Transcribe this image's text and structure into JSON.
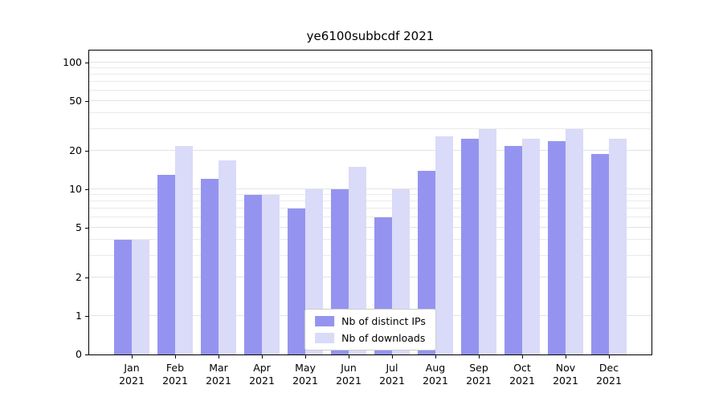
{
  "chart_data": {
    "type": "bar",
    "title": "ye6100subbcdf 2021",
    "categories": [
      "Jan",
      "Feb",
      "Mar",
      "Apr",
      "May",
      "Jun",
      "Jul",
      "Aug",
      "Sep",
      "Oct",
      "Nov",
      "Dec"
    ],
    "year_label": "2021",
    "series": [
      {
        "name": "Nb of distinct IPs",
        "color": "#9494f0",
        "values": [
          4,
          13,
          12,
          9,
          7,
          10,
          6,
          14,
          25,
          22,
          24,
          19
        ]
      },
      {
        "name": "Nb of downloads",
        "color": "#dadaf9",
        "values": [
          4,
          22,
          17,
          9,
          10,
          15,
          10,
          26,
          30,
          25,
          30,
          25
        ]
      }
    ],
    "y_axis": {
      "scale": "symlog",
      "ticks": [
        0,
        1,
        2,
        5,
        10,
        20,
        50,
        100
      ],
      "minor_gridlines": [
        3,
        4,
        6,
        7,
        8,
        9,
        30,
        40,
        60,
        70,
        80,
        90
      ],
      "ylim": [
        0,
        128
      ],
      "grid": true
    },
    "legend": {
      "position": "lower center"
    },
    "colors": {
      "axis": "#000000",
      "grid": "#eaeaea",
      "background": "#ffffff"
    }
  }
}
